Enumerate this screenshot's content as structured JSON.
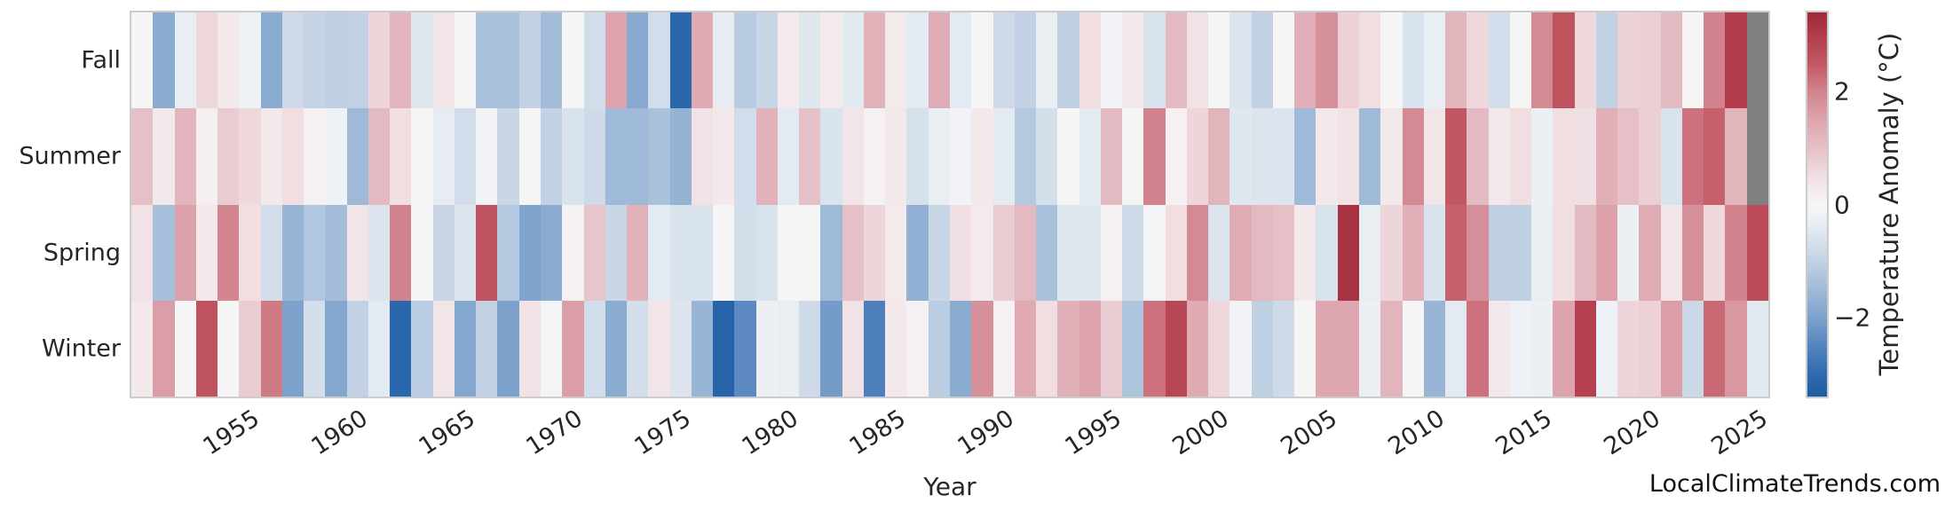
{
  "watermark": "LocalClimateTrends.com",
  "chart_data": {
    "type": "heatmap",
    "xlabel": "Year",
    "year_start": 1950,
    "year_end": 2025,
    "x_tick_labels": [
      "1955",
      "1960",
      "1965",
      "1970",
      "1975",
      "1980",
      "1985",
      "1990",
      "1995",
      "2000",
      "2005",
      "2010",
      "2015",
      "2020",
      "2025"
    ],
    "rows_top_to_bottom": [
      "Fall",
      "Summer",
      "Spring",
      "Winter"
    ],
    "missing_color": "#7f7f7f",
    "colorbar": {
      "label": "Temperature Anomaly (°C)",
      "ticks": [
        "2",
        "0",
        "−2"
      ],
      "tick_values": [
        2,
        0,
        -2
      ],
      "vmin": -3.4,
      "vmax": 3.4
    },
    "colormap_stops": [
      [
        -3.4,
        "#1f5ca3"
      ],
      [
        -3.0,
        "#2e6bb0"
      ],
      [
        -2.5,
        "#5584bf"
      ],
      [
        -2.0,
        "#7da2cc"
      ],
      [
        -1.5,
        "#9fbad9"
      ],
      [
        -1.0,
        "#c2d2e4"
      ],
      [
        -0.5,
        "#dfe7ef"
      ],
      [
        -0.15,
        "#f1f3f6"
      ],
      [
        0,
        "#f6f5f6"
      ],
      [
        0.15,
        "#f5eff0"
      ],
      [
        0.5,
        "#f0dee1"
      ],
      [
        1.0,
        "#e5c0c6"
      ],
      [
        1.5,
        "#dda4ad"
      ],
      [
        2.0,
        "#d2838d"
      ],
      [
        2.5,
        "#c25764"
      ],
      [
        3.0,
        "#b23c4b"
      ],
      [
        3.4,
        "#a02837"
      ]
    ],
    "series": [
      {
        "name": "Fall",
        "values": [
          0.0,
          -1.8,
          -0.3,
          0.6,
          0.3,
          -0.2,
          -1.8,
          -0.8,
          -0.95,
          -1.05,
          -1.0,
          0.65,
          1.2,
          -0.5,
          0.35,
          0.0,
          -1.35,
          -1.35,
          -1.0,
          -1.45,
          0.0,
          -0.75,
          1.5,
          -1.85,
          -0.75,
          -3.1,
          1.4,
          -0.35,
          -1.15,
          -0.9,
          0.25,
          -0.5,
          0.25,
          -0.45,
          1.25,
          0.25,
          -0.4,
          1.35,
          -0.4,
          0.0,
          -0.8,
          -1.0,
          -0.3,
          -1.05,
          0.5,
          -0.15,
          0.3,
          -0.6,
          1.1,
          0.4,
          0.0,
          -0.55,
          -1.0,
          0.0,
          1.3,
          1.8,
          0.7,
          0.5,
          0.0,
          -0.6,
          -0.3,
          1.2,
          0.6,
          -0.75,
          0.0,
          1.9,
          2.6,
          0.6,
          -1.0,
          0.7,
          0.75,
          1.1,
          0.0,
          2.0,
          3.0,
          null
        ]
      },
      {
        "name": "Summer",
        "values": [
          1.0,
          0.3,
          1.2,
          0.15,
          0.8,
          0.6,
          0.3,
          0.5,
          0.1,
          -0.2,
          -1.5,
          1.1,
          0.5,
          0.0,
          -0.35,
          -0.75,
          -0.15,
          -0.9,
          0.0,
          -1.0,
          -0.6,
          -0.8,
          -1.5,
          -1.5,
          -1.35,
          -1.65,
          0.4,
          0.3,
          -0.75,
          1.25,
          -0.4,
          1.0,
          -0.6,
          0.35,
          0.1,
          0.3,
          -0.65,
          -0.3,
          -0.15,
          0.3,
          -0.4,
          -1.2,
          -0.7,
          0.0,
          -0.4,
          1.1,
          0.0,
          2.0,
          0.1,
          0.65,
          1.2,
          -0.5,
          -0.55,
          -0.55,
          -1.5,
          0.3,
          0.4,
          -1.5,
          0.3,
          1.9,
          0.35,
          2.5,
          1.1,
          0.3,
          0.5,
          -0.25,
          0.5,
          0.45,
          1.3,
          1.0,
          0.75,
          -0.6,
          2.2,
          2.4,
          1.2,
          null
        ]
      },
      {
        "name": "Spring",
        "values": [
          0.4,
          -1.4,
          1.55,
          0.3,
          1.95,
          0.5,
          -0.75,
          -1.6,
          -1.25,
          -1.45,
          0.35,
          -0.55,
          2.0,
          0.0,
          -0.9,
          -0.55,
          2.6,
          -1.2,
          -1.95,
          -1.8,
          0.1,
          0.9,
          -0.9,
          1.25,
          -0.4,
          -0.6,
          -0.6,
          0.0,
          -0.7,
          -0.6,
          0.0,
          0.0,
          -1.5,
          1.0,
          0.65,
          0.25,
          -1.7,
          -0.9,
          0.45,
          0.25,
          0.8,
          1.1,
          -1.35,
          -0.5,
          -0.5,
          0.1,
          -0.8,
          -0.1,
          0.5,
          1.9,
          -0.55,
          1.35,
          1.1,
          1.0,
          0.3,
          -0.6,
          3.2,
          -0.3,
          0.65,
          1.3,
          -0.6,
          2.4,
          1.8,
          -1.05,
          -1.05,
          -0.3,
          0.5,
          1.1,
          1.55,
          -0.25,
          1.35,
          0.35,
          1.8,
          0.6,
          2.0,
          2.7
        ]
      },
      {
        "name": "Winter",
        "values": [
          0.3,
          1.6,
          0.0,
          2.6,
          0.0,
          0.8,
          2.1,
          -2.0,
          -0.7,
          -1.9,
          -1.0,
          -0.4,
          -3.1,
          -1.1,
          0.35,
          -1.9,
          -1.0,
          -2.0,
          0.4,
          -0.1,
          1.6,
          -0.75,
          -1.8,
          -0.7,
          0.35,
          -0.55,
          -1.6,
          -3.2,
          -2.4,
          -0.25,
          -0.3,
          -0.8,
          -2.1,
          0.4,
          -2.6,
          0.3,
          0.1,
          -1.1,
          -1.8,
          1.8,
          0.1,
          1.4,
          0.5,
          1.3,
          1.5,
          0.8,
          -1.3,
          2.2,
          2.8,
          1.4,
          0.6,
          -0.15,
          -1.05,
          -0.8,
          0.0,
          1.45,
          1.45,
          -0.25,
          1.2,
          0.0,
          -1.6,
          -0.4,
          2.2,
          0.3,
          -0.2,
          -0.25,
          1.5,
          2.9,
          -0.2,
          0.65,
          0.7,
          1.6,
          -0.85,
          2.3,
          1.7,
          -0.45
        ]
      }
    ]
  }
}
